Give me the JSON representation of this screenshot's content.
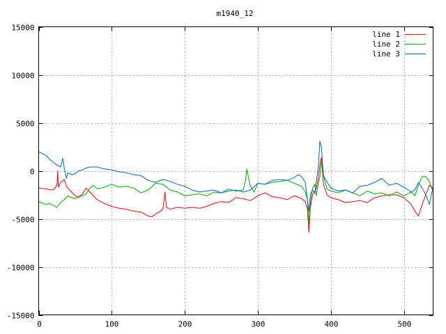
{
  "chart_data": {
    "type": "line",
    "title": "m1940_12",
    "xlabel": "",
    "ylabel": "",
    "xlim": [
      0,
      540
    ],
    "ylim": [
      -15000,
      15000
    ],
    "xticks": [
      0,
      100,
      200,
      300,
      400,
      500
    ],
    "yticks": [
      -15000,
      -10000,
      -5000,
      0,
      5000,
      10000,
      15000
    ],
    "grid": true,
    "legend_position": "top-right",
    "series": [
      {
        "name": "line 1",
        "color": "#ff0000",
        "x": [
          0,
          10,
          20,
          25,
          26,
          27,
          30,
          35,
          38,
          40,
          45,
          50,
          55,
          60,
          65,
          70,
          75,
          80,
          90,
          100,
          110,
          120,
          130,
          140,
          150,
          155,
          160,
          165,
          170,
          172,
          173,
          175,
          180,
          190,
          200,
          210,
          220,
          230,
          240,
          250,
          260,
          270,
          280,
          290,
          300,
          310,
          320,
          330,
          340,
          350,
          360,
          365,
          368,
          370,
          372,
          375,
          380,
          383,
          385,
          387,
          390,
          395,
          400,
          410,
          420,
          430,
          440,
          450,
          460,
          470,
          480,
          490,
          500,
          510,
          515,
          520,
          525,
          530,
          535,
          540
        ],
        "y": [
          -1800,
          -1900,
          -2000,
          -1500,
          0,
          -1700,
          -1200,
          -900,
          -1600,
          -1800,
          -2200,
          -2600,
          -2800,
          -2400,
          -1800,
          -2200,
          -2600,
          -3000,
          -3400,
          -3700,
          -3900,
          -4000,
          -4200,
          -4300,
          -4700,
          -4800,
          -4500,
          -4300,
          -4000,
          -2800,
          -2200,
          -3800,
          -4000,
          -3800,
          -3900,
          -3800,
          -3900,
          -3700,
          -3400,
          -3200,
          -3300,
          -2800,
          -2900,
          -3100,
          -2600,
          -2300,
          -2700,
          -2800,
          -3000,
          -2600,
          -2900,
          -3200,
          -4000,
          -6400,
          -3800,
          -2500,
          -1900,
          -700,
          600,
          1400,
          -1500,
          -2500,
          -2800,
          -3000,
          -3300,
          -3200,
          -3100,
          -3300,
          -2800,
          -2600,
          -2500,
          -2500,
          -2800,
          -3500,
          -4200,
          -4700,
          -3500,
          -2500,
          -1500,
          -1800
        ]
      },
      {
        "name": "line 2",
        "color": "#00aa00",
        "x": [
          0,
          10,
          15,
          20,
          25,
          30,
          35,
          40,
          45,
          50,
          55,
          60,
          65,
          70,
          75,
          80,
          90,
          100,
          110,
          120,
          130,
          140,
          150,
          160,
          170,
          180,
          190,
          200,
          210,
          220,
          230,
          240,
          250,
          260,
          270,
          280,
          283,
          285,
          288,
          290,
          295,
          300,
          310,
          320,
          330,
          340,
          350,
          360,
          365,
          368,
          370,
          372,
          375,
          378,
          380,
          383,
          385,
          387,
          390,
          393,
          395,
          400,
          410,
          420,
          430,
          440,
          450,
          460,
          470,
          480,
          490,
          500,
          510,
          515,
          520,
          525,
          530,
          535,
          540
        ],
        "y": [
          -3200,
          -3500,
          -3400,
          -3600,
          -3800,
          -3300,
          -3000,
          -2600,
          -2800,
          -2900,
          -2600,
          -2600,
          -2400,
          -1800,
          -1500,
          -1900,
          -1700,
          -1400,
          -1700,
          -1600,
          -1800,
          -2300,
          -2000,
          -1300,
          -1400,
          -2000,
          -2200,
          -2600,
          -2500,
          -2400,
          -2600,
          -2200,
          -2300,
          -1900,
          -2100,
          -2000,
          -1100,
          200,
          -1000,
          -1600,
          -2200,
          -1300,
          -1400,
          -1200,
          -1100,
          -1000,
          -1300,
          -1600,
          -2200,
          -3000,
          -5500,
          -3200,
          -1800,
          -1400,
          -2600,
          -1300,
          -600,
          900,
          -500,
          -1400,
          -1900,
          -2100,
          -2300,
          -2000,
          -2300,
          -2600,
          -2100,
          -2400,
          -2300,
          -2600,
          -2200,
          -2600,
          -2200,
          -2600,
          -1500,
          -600,
          -600,
          -1100,
          -2200
        ]
      },
      {
        "name": "line 3",
        "color": "#0066cc",
        "x": [
          0,
          5,
          10,
          15,
          20,
          25,
          30,
          33,
          35,
          38,
          40,
          45,
          50,
          55,
          60,
          65,
          70,
          80,
          90,
          100,
          110,
          120,
          130,
          140,
          150,
          160,
          170,
          180,
          190,
          200,
          210,
          220,
          230,
          240,
          250,
          260,
          270,
          280,
          290,
          300,
          310,
          320,
          330,
          340,
          350,
          355,
          360,
          365,
          368,
          370,
          372,
          375,
          378,
          380,
          383,
          385,
          387,
          390,
          395,
          400,
          410,
          420,
          430,
          440,
          450,
          460,
          470,
          480,
          490,
          500,
          510,
          515,
          520,
          525,
          530,
          535,
          540
        ],
        "y": [
          2000,
          1800,
          1600,
          1200,
          900,
          600,
          400,
          1300,
          300,
          -800,
          -200,
          -400,
          -300,
          0,
          100,
          300,
          400,
          400,
          200,
          100,
          -100,
          -200,
          -400,
          -500,
          -1000,
          -1200,
          -900,
          -1100,
          -1400,
          -1600,
          -2000,
          -2200,
          -2100,
          -2000,
          -2300,
          -2100,
          -2000,
          -2200,
          -2000,
          -1300,
          -1400,
          -1000,
          -900,
          -1000,
          -700,
          -400,
          -600,
          -1200,
          -3000,
          -4200,
          -2500,
          -2000,
          -2300,
          -1200,
          500,
          3100,
          2500,
          -500,
          -1200,
          -1800,
          -2100,
          -2000,
          -2300,
          -1600,
          -1500,
          -1200,
          -800,
          -1500,
          -1300,
          -1700,
          -2200,
          -2000,
          -1200,
          -1800,
          -2500,
          -3500,
          -1600
        ]
      }
    ]
  }
}
